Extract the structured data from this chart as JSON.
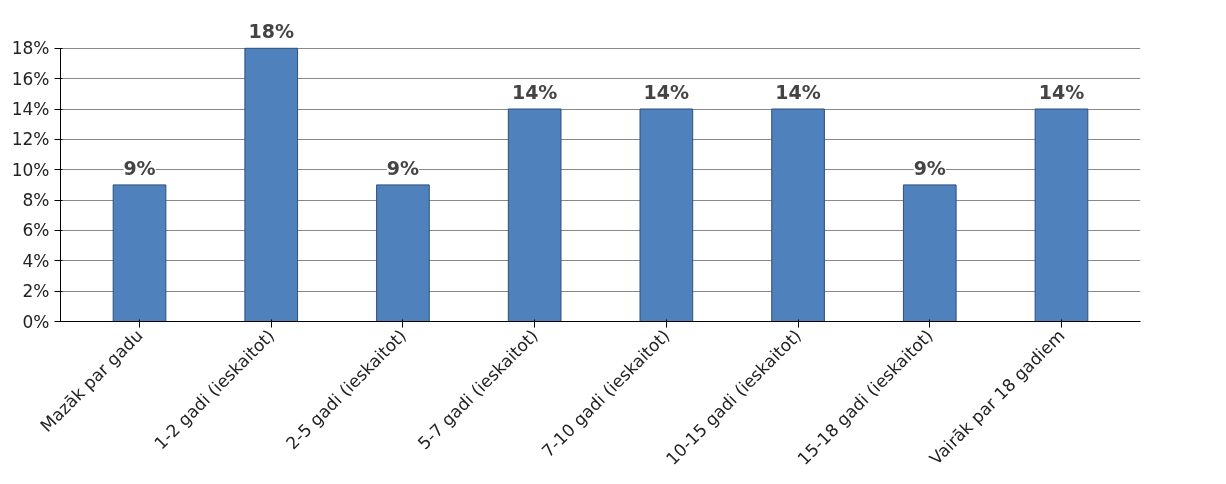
{
  "chart_data": {
    "type": "bar",
    "categories": [
      "Mazāk par gadu",
      "1-2 gadi (ieskaitot)",
      "2-5 gadi (ieskaitot)",
      "5-7 gadi (ieskaitot)",
      "7-10 gadi (ieskaitot)",
      "10-15 gadi (ieskaitot)",
      "15-18 gadi (ieskaitot)",
      "Vairāk par 18 gadiem"
    ],
    "values": [
      9,
      18,
      9,
      14,
      14,
      14,
      9,
      14
    ],
    "value_labels": [
      "9%",
      "18%",
      "9%",
      "14%",
      "14%",
      "14%",
      "9%",
      "14%"
    ],
    "color": "#4f81bd",
    "ylim": [
      0,
      18
    ],
    "yticks": [
      {
        "value": 0,
        "label": "0%"
      },
      {
        "value": 2,
        "label": "2%"
      },
      {
        "value": 4,
        "label": "4%"
      },
      {
        "value": 6,
        "label": "6%"
      },
      {
        "value": 8,
        "label": "8%"
      },
      {
        "value": 10,
        "label": "10%"
      },
      {
        "value": 12,
        "label": "12%"
      },
      {
        "value": 14,
        "label": "14%"
      },
      {
        "value": 16,
        "label": "16%"
      },
      {
        "value": 18,
        "label": "18%"
      }
    ],
    "grid": "y"
  }
}
